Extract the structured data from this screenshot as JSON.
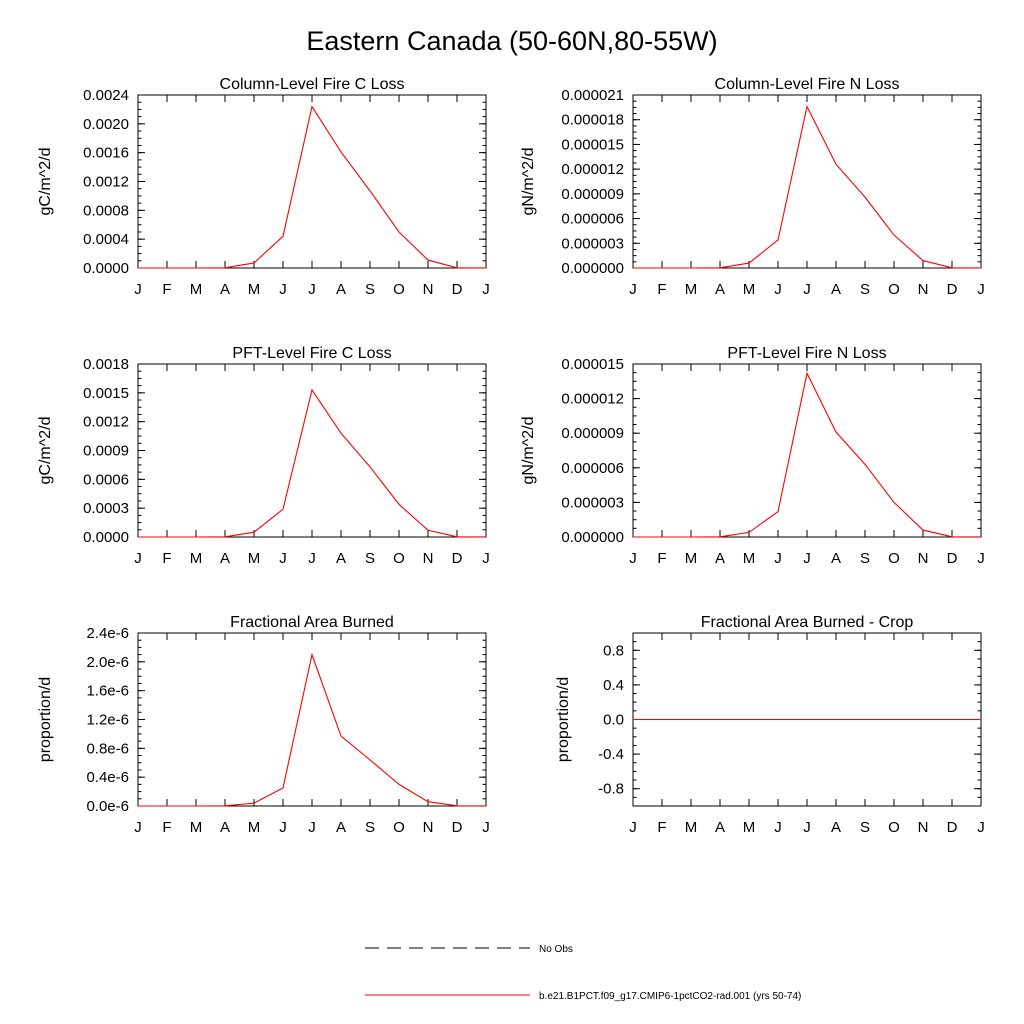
{
  "figure_title": "Eastern Canada (50-60N,80-55W)",
  "colors": {
    "model_line": "#ff0000",
    "obs_line": "#000000",
    "axes": "#000000"
  },
  "legend": {
    "entries": [
      {
        "label": "No Obs",
        "style": "dashed",
        "color": "#000000"
      },
      {
        "label": "b.e21.B1PCT.f09_g17.CMIP6-1pctCO2-rad.001 (yrs 50-74)",
        "style": "solid",
        "color": "#ff0000"
      }
    ]
  },
  "chart_data": [
    {
      "type": "line",
      "title": "Column-Level Fire C Loss",
      "ylabel": "gC/m^2/d",
      "categories": [
        "J",
        "F",
        "M",
        "A",
        "M",
        "J",
        "J",
        "A",
        "S",
        "O",
        "N",
        "D",
        "J"
      ],
      "ylim": [
        0,
        0.0024
      ],
      "yticks": [
        0,
        0.0004,
        0.0008,
        0.0012,
        0.0016,
        0.002,
        0.0024
      ],
      "ytick_labels": [
        "0.0000",
        "0.0004",
        "0.0008",
        "0.0012",
        "0.0016",
        "0.0020",
        "0.0024"
      ],
      "series": [
        {
          "values": [
            0,
            0,
            0,
            3e-06,
            7e-05,
            0.00044,
            0.00224,
            0.00161,
            0.00107,
            0.0005,
            0.00011,
            3e-06,
            1e-06
          ]
        }
      ]
    },
    {
      "type": "line",
      "title": "Column-Level Fire N Loss",
      "ylabel": "gN/m^2/d",
      "categories": [
        "J",
        "F",
        "M",
        "A",
        "M",
        "J",
        "J",
        "A",
        "S",
        "O",
        "N",
        "D",
        "J"
      ],
      "ylim": [
        0,
        2.1e-05
      ],
      "yticks": [
        0,
        3e-06,
        6e-06,
        9e-06,
        1.2e-05,
        1.5e-05,
        1.8e-05,
        2.1e-05
      ],
      "ytick_labels": [
        "0.000000",
        "0.000003",
        "0.000006",
        "0.000009",
        "0.000012",
        "0.000015",
        "0.000018",
        "0.000021"
      ],
      "series": [
        {
          "values": [
            0,
            0,
            0,
            2e-08,
            6e-07,
            3.4e-06,
            1.96e-05,
            1.26e-05,
            8.6e-06,
            4e-06,
            9e-07,
            2e-08,
            1e-08
          ]
        }
      ]
    },
    {
      "type": "line",
      "title": "PFT-Level Fire C Loss",
      "ylabel": "gC/m^2/d",
      "categories": [
        "J",
        "F",
        "M",
        "A",
        "M",
        "J",
        "J",
        "A",
        "S",
        "O",
        "N",
        "D",
        "J"
      ],
      "ylim": [
        0,
        0.0018
      ],
      "yticks": [
        0,
        0.0003,
        0.0006,
        0.0009,
        0.0012,
        0.0015,
        0.0018
      ],
      "ytick_labels": [
        "0.0000",
        "0.0003",
        "0.0006",
        "0.0009",
        "0.0012",
        "0.0015",
        "0.0018"
      ],
      "series": [
        {
          "values": [
            0,
            0,
            0,
            2e-06,
            5e-05,
            0.00029,
            0.00153,
            0.00108,
            0.00073,
            0.00034,
            7e-05,
            2e-06,
            1e-06
          ]
        }
      ]
    },
    {
      "type": "line",
      "title": "PFT-Level Fire N Loss",
      "ylabel": "gN/m^2/d",
      "categories": [
        "J",
        "F",
        "M",
        "A",
        "M",
        "J",
        "J",
        "A",
        "S",
        "O",
        "N",
        "D",
        "J"
      ],
      "ylim": [
        0,
        1.5e-05
      ],
      "yticks": [
        0,
        3e-06,
        6e-06,
        9e-06,
        1.2e-05,
        1.5e-05
      ],
      "ytick_labels": [
        "0.000000",
        "0.000003",
        "0.000006",
        "0.000009",
        "0.000012",
        "0.000015"
      ],
      "series": [
        {
          "values": [
            0,
            0,
            0,
            2e-08,
            4e-07,
            2.2e-06,
            1.42e-05,
            9.1e-06,
            6.3e-06,
            3e-06,
            6e-07,
            2e-08,
            1e-08
          ]
        }
      ]
    },
    {
      "type": "line",
      "title": "Fractional Area Burned",
      "ylabel": "proportion/d",
      "categories": [
        "J",
        "F",
        "M",
        "A",
        "M",
        "J",
        "J",
        "A",
        "S",
        "O",
        "N",
        "D",
        "J"
      ],
      "ylim": [
        0,
        2.4e-06
      ],
      "yticks": [
        0,
        4e-07,
        8e-07,
        1.2e-06,
        1.6e-06,
        2e-06,
        2.4e-06
      ],
      "ytick_labels": [
        "0.0e-6",
        "0.4e-6",
        "0.8e-6",
        "1.2e-6",
        "1.6e-6",
        "2.0e-6",
        "2.4e-6"
      ],
      "series": [
        {
          "values": [
            0,
            0,
            0,
            3e-09,
            4e-08,
            2.5e-07,
            2.1e-06,
            9.7e-07,
            6.4e-07,
            3e-07,
            6e-08,
            3e-09,
            1e-09
          ]
        }
      ]
    },
    {
      "type": "line",
      "title": "Fractional Area Burned - Crop",
      "ylabel": "proportion/d",
      "categories": [
        "J",
        "F",
        "M",
        "A",
        "M",
        "J",
        "J",
        "A",
        "S",
        "O",
        "N",
        "D",
        "J"
      ],
      "ylim": [
        -1,
        1
      ],
      "yticks": [
        -0.8,
        -0.4,
        0,
        0.4,
        0.8
      ],
      "ytick_labels": [
        "-0.8",
        "-0.4",
        "0.0",
        "0.4",
        "0.8"
      ],
      "series": [
        {
          "values": [
            0,
            0,
            0,
            0,
            0,
            0,
            0,
            0,
            0,
            0,
            0,
            0,
            0
          ]
        }
      ]
    }
  ]
}
